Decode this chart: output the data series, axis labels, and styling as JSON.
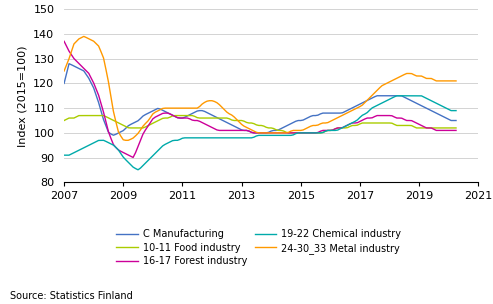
{
  "title": "",
  "ylabel": "Index (2015=100)",
  "source": "Source: Statistics Finland",
  "ylim": [
    80,
    150
  ],
  "xlim": [
    2007.0,
    2021.0
  ],
  "yticks": [
    80,
    90,
    100,
    110,
    120,
    130,
    140,
    150
  ],
  "xticks": [
    2007,
    2009,
    2011,
    2013,
    2015,
    2017,
    2019,
    2021
  ],
  "series_order": [
    "C Manufacturing",
    "10-11 Food industry",
    "16-17 Forest industry",
    "19-22 Chemical industry",
    "24-30_33 Metal industry"
  ],
  "series": {
    "C Manufacturing": {
      "color": "#4472C4",
      "data": [
        120,
        128,
        127,
        126,
        125,
        122,
        118,
        112,
        105,
        100,
        99,
        100,
        101,
        103,
        104,
        105,
        107,
        108,
        109,
        110,
        109,
        108,
        107,
        106,
        106,
        107,
        108,
        109,
        109,
        108,
        107,
        106,
        105,
        104,
        103,
        102,
        101,
        101,
        100,
        100,
        100,
        100,
        101,
        101,
        102,
        103,
        104,
        105,
        105,
        106,
        107,
        107,
        108,
        108,
        108,
        108,
        108,
        109,
        110,
        111,
        112,
        113,
        114,
        115,
        115,
        115,
        115,
        115,
        115,
        114,
        113,
        112,
        111,
        110,
        109,
        108,
        107,
        106,
        105,
        105
      ]
    },
    "16-17 Forest industry": {
      "color": "#CC0099",
      "data": [
        137,
        133,
        130,
        128,
        126,
        124,
        120,
        115,
        108,
        100,
        95,
        93,
        92,
        91,
        90,
        95,
        100,
        103,
        106,
        107,
        108,
        108,
        107,
        106,
        106,
        106,
        105,
        105,
        104,
        103,
        102,
        101,
        101,
        101,
        101,
        101,
        101,
        101,
        100,
        100,
        100,
        100,
        100,
        100,
        100,
        100,
        100,
        100,
        100,
        100,
        100,
        100,
        101,
        101,
        101,
        102,
        102,
        103,
        104,
        104,
        105,
        106,
        106,
        107,
        107,
        107,
        107,
        106,
        106,
        105,
        105,
        104,
        103,
        102,
        102,
        101,
        101,
        101,
        101,
        101
      ]
    },
    "10-11 Food industry": {
      "color": "#AACC00",
      "data": [
        105,
        106,
        106,
        107,
        107,
        107,
        107,
        107,
        107,
        106,
        105,
        104,
        103,
        102,
        102,
        102,
        102,
        103,
        104,
        105,
        106,
        106,
        107,
        107,
        107,
        107,
        107,
        106,
        106,
        106,
        106,
        106,
        106,
        106,
        105,
        105,
        105,
        104,
        104,
        103,
        103,
        102,
        102,
        101,
        101,
        100,
        100,
        100,
        100,
        100,
        100,
        100,
        100,
        101,
        101,
        102,
        102,
        102,
        103,
        103,
        104,
        104,
        104,
        104,
        104,
        104,
        104,
        103,
        103,
        103,
        103,
        102,
        102,
        102,
        102,
        102,
        102,
        102,
        102,
        102
      ]
    },
    "19-22 Chemical industry": {
      "color": "#00AAAA",
      "data": [
        91,
        91,
        92,
        93,
        94,
        95,
        96,
        97,
        97,
        96,
        95,
        93,
        90,
        88,
        86,
        85,
        87,
        89,
        91,
        93,
        95,
        96,
        97,
        97,
        98,
        98,
        98,
        98,
        98,
        98,
        98,
        98,
        98,
        98,
        98,
        98,
        98,
        98,
        98,
        99,
        99,
        99,
        99,
        99,
        99,
        99,
        99,
        100,
        100,
        100,
        100,
        100,
        100,
        101,
        101,
        101,
        102,
        103,
        104,
        105,
        107,
        108,
        110,
        111,
        112,
        113,
        114,
        115,
        115,
        115,
        115,
        115,
        115,
        114,
        113,
        112,
        111,
        110,
        109,
        109
      ]
    },
    "24-30_33 Metal industry": {
      "color": "#FF9900",
      "data": [
        125,
        130,
        136,
        138,
        139,
        138,
        137,
        135,
        130,
        120,
        108,
        100,
        97,
        97,
        98,
        100,
        103,
        105,
        108,
        109,
        110,
        110,
        110,
        110,
        110,
        110,
        110,
        110,
        112,
        113,
        113,
        112,
        110,
        108,
        107,
        105,
        103,
        102,
        101,
        100,
        100,
        100,
        100,
        100,
        100,
        100,
        101,
        101,
        101,
        102,
        103,
        103,
        104,
        104,
        105,
        106,
        107,
        108,
        109,
        110,
        111,
        113,
        115,
        117,
        119,
        120,
        121,
        122,
        123,
        124,
        124,
        123,
        123,
        122,
        122,
        121,
        121,
        121,
        121,
        121
      ]
    }
  }
}
